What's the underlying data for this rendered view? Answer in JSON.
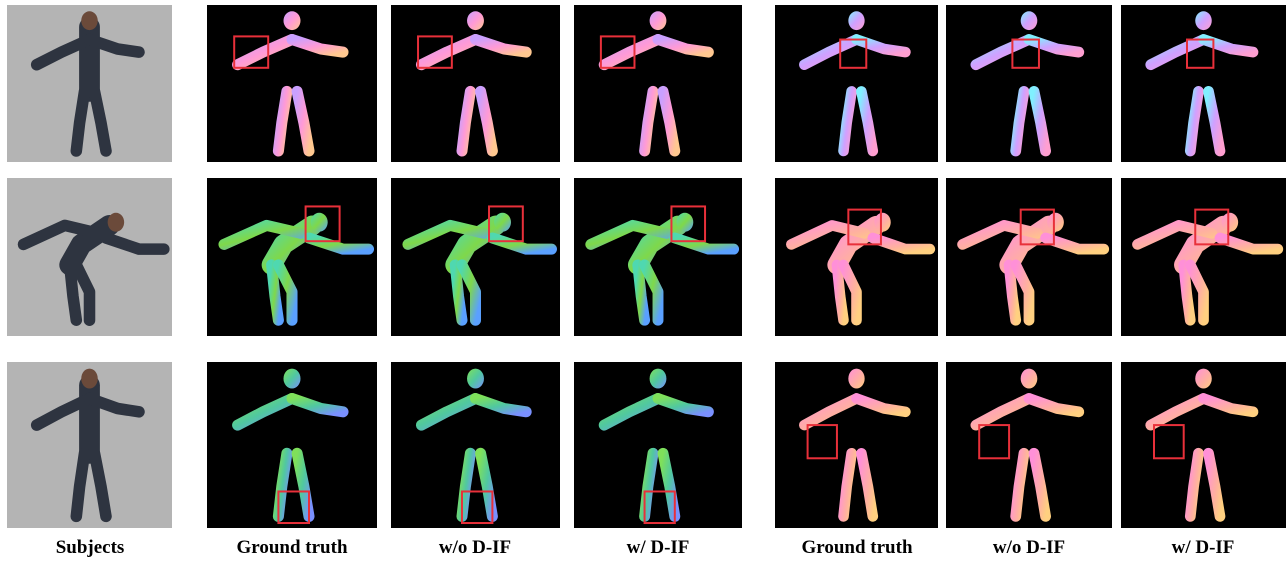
{
  "captions": [
    "Subjects",
    "Ground truth",
    "w/o D-IF",
    "w/ D-IF",
    "Ground truth",
    "w/o D-IF",
    "w/ D-IF"
  ]
}
